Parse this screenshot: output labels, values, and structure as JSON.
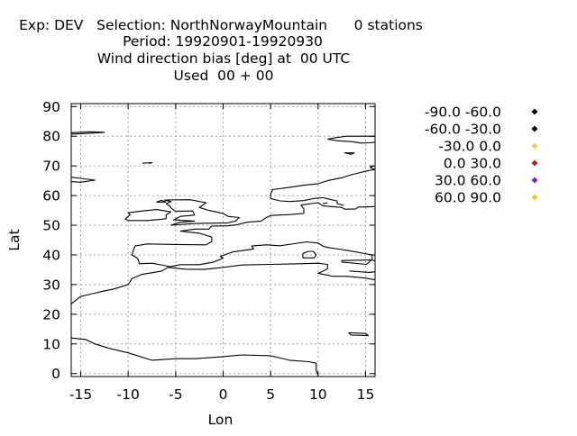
{
  "chart_data": {
    "type": "scatter",
    "title_lines": [
      "Exp: DEV   Selection: NorthNorwayMountain      0 stations",
      "Period: 19920901-19920930",
      "Wind direction bias [deg] at  00 UTC",
      "Used  00 + 00"
    ],
    "xlabel": "Lon",
    "ylabel": "Lat",
    "xlim": [
      -16,
      16
    ],
    "ylim": [
      -1,
      91
    ],
    "xticks": [
      -15,
      -10,
      -5,
      0,
      5,
      10,
      15
    ],
    "yticks": [
      0,
      10,
      20,
      30,
      40,
      50,
      60,
      70,
      80,
      90
    ],
    "grid": true,
    "legend_position": "right",
    "legend": [
      {
        "label": "-90.0 -60.0",
        "color": "#000000"
      },
      {
        "label": "-60.0 -30.0",
        "color": "#000000"
      },
      {
        "label": "-30.0 0.0",
        "color": "#f0d050"
      },
      {
        "label": "0.0 30.0",
        "color": "#c02020"
      },
      {
        "label": "30.0 60.0",
        "color": "#8020c0"
      },
      {
        "label": "60.0 90.0",
        "color": "#e8d020"
      }
    ],
    "series": [],
    "coastlines": [
      [
        [
          -16,
          81.2
        ],
        [
          -14,
          81.5
        ],
        [
          -12.5,
          81.3
        ],
        [
          -14,
          81.0
        ],
        [
          -16,
          80.7
        ]
      ],
      [
        [
          -16,
          66.2
        ],
        [
          -15,
          65.8
        ],
        [
          -13.5,
          65.2
        ],
        [
          -15,
          64.5
        ],
        [
          -16,
          64.7
        ]
      ],
      [
        [
          -8.5,
          70.9
        ],
        [
          -7.5,
          71.1
        ],
        [
          -7.8,
          70.8
        ]
      ],
      [
        [
          -16,
          23.5
        ],
        [
          -15,
          26
        ],
        [
          -13,
          27.5
        ],
        [
          -11.5,
          28.5
        ],
        [
          -10,
          30
        ],
        [
          -9.6,
          32
        ],
        [
          -8.5,
          33.5
        ],
        [
          -6.5,
          34.5
        ],
        [
          -5.8,
          35.8
        ],
        [
          -4,
          35.2
        ],
        [
          -2,
          35.1
        ],
        [
          0,
          35.8
        ],
        [
          2,
          36.6
        ],
        [
          5,
          36.8
        ],
        [
          8,
          37
        ],
        [
          10,
          37.2
        ],
        [
          11,
          36.8
        ],
        [
          11,
          35.4
        ],
        [
          10.5,
          34.5
        ],
        [
          10,
          33.8
        ],
        [
          11,
          33.2
        ],
        [
          11.5,
          32.8
        ],
        [
          13,
          32.8
        ],
        [
          15,
          32.2
        ],
        [
          16,
          31.6
        ]
      ],
      [
        [
          -16,
          12
        ],
        [
          -14.5,
          11.5
        ],
        [
          -13.5,
          10
        ],
        [
          -12,
          8.5
        ],
        [
          -10,
          7
        ],
        [
          -7.5,
          4.5
        ],
        [
          -5,
          5
        ],
        [
          -3,
          5
        ],
        [
          0,
          5.7
        ],
        [
          2,
          6.3
        ],
        [
          5,
          6
        ],
        [
          7,
          4.5
        ],
        [
          9,
          4
        ],
        [
          9.8,
          3.5
        ],
        [
          9.8,
          1
        ],
        [
          10,
          -0.5
        ]
      ],
      [
        [
          -9.3,
          43
        ],
        [
          -8,
          43.7
        ],
        [
          -5,
          43.5
        ],
        [
          -1.8,
          43.4
        ],
        [
          -1.2,
          44.5
        ],
        [
          -1.2,
          46
        ],
        [
          -2.5,
          47.3
        ],
        [
          -4.5,
          48
        ],
        [
          -3,
          48.7
        ],
        [
          -1.5,
          48.7
        ],
        [
          -1.2,
          49.7
        ],
        [
          0.5,
          49.8
        ],
        [
          1.5,
          50.2
        ],
        [
          2.5,
          51
        ],
        [
          4,
          51.4
        ],
        [
          4.5,
          52.5
        ],
        [
          5,
          53.3
        ],
        [
          7,
          53.6
        ],
        [
          8.5,
          54
        ],
        [
          8.5,
          55.5
        ],
        [
          8.2,
          56.8
        ],
        [
          10,
          57.6
        ],
        [
          10.5,
          56.5
        ],
        [
          12.5,
          56
        ],
        [
          12.8,
          55.4
        ],
        [
          14,
          55.5
        ],
        [
          14.2,
          56.1
        ],
        [
          16,
          56.3
        ]
      ],
      [
        [
          -9.3,
          43
        ],
        [
          -9.6,
          40
        ],
        [
          -9,
          38.8
        ],
        [
          -8.8,
          37
        ],
        [
          -7.5,
          37.2
        ],
        [
          -6.3,
          36.5
        ],
        [
          -5.6,
          36
        ],
        [
          -4.5,
          36.7
        ],
        [
          -2.5,
          36.7
        ],
        [
          -1,
          37.6
        ],
        [
          0,
          38.9
        ],
        [
          -0.3,
          39.5
        ],
        [
          1,
          41
        ],
        [
          3.2,
          42
        ],
        [
          3,
          43
        ],
        [
          4.5,
          43.4
        ],
        [
          6,
          43.1
        ],
        [
          7.5,
          43.8
        ],
        [
          8.8,
          44.4
        ],
        [
          10,
          44
        ],
        [
          10.5,
          43
        ],
        [
          11,
          42.5
        ],
        [
          12.5,
          41.8
        ],
        [
          14,
          41
        ],
        [
          15.7,
          40
        ],
        [
          15.7,
          38.2
        ],
        [
          16,
          38
        ]
      ],
      [
        [
          9.5,
          41.2
        ],
        [
          9.8,
          40
        ],
        [
          9.6,
          39
        ],
        [
          8.4,
          39
        ],
        [
          8.4,
          40.5
        ],
        [
          9,
          41.2
        ],
        [
          9.5,
          41.2
        ]
      ],
      [
        [
          12.5,
          38.1
        ],
        [
          15.6,
          38.3
        ],
        [
          15.1,
          36.8
        ],
        [
          12.5,
          37.6
        ],
        [
          12.5,
          38.1
        ]
      ],
      [
        [
          -6.2,
          58.5
        ],
        [
          -3.5,
          58.6
        ],
        [
          -1.8,
          57.6
        ],
        [
          -2.5,
          56
        ],
        [
          -1.5,
          55
        ],
        [
          0,
          54
        ],
        [
          0.5,
          53
        ],
        [
          1.7,
          52.6
        ],
        [
          1.3,
          51.4
        ],
        [
          0.5,
          50.8
        ],
        [
          -1,
          50.7
        ],
        [
          -3,
          50.6
        ],
        [
          -5.5,
          50
        ],
        [
          -4.5,
          51
        ],
        [
          -3,
          51.4
        ],
        [
          -4.5,
          51.7
        ],
        [
          -5.2,
          51.8
        ],
        [
          -4.5,
          53
        ],
        [
          -3,
          53.4
        ],
        [
          -3.2,
          54.8
        ],
        [
          -5,
          54.7
        ],
        [
          -5.5,
          55.8
        ],
        [
          -5.6,
          56.5
        ],
        [
          -6,
          57.2
        ],
        [
          -5.5,
          58
        ],
        [
          -6.2,
          58.5
        ]
      ],
      [
        [
          -10,
          51.6
        ],
        [
          -10.3,
          52.1
        ],
        [
          -9.8,
          53.5
        ],
        [
          -10,
          54.2
        ],
        [
          -8.5,
          54.8
        ],
        [
          -7,
          55.3
        ],
        [
          -5.5,
          54.5
        ],
        [
          -6,
          53.5
        ],
        [
          -6,
          52.2
        ],
        [
          -6.5,
          52
        ],
        [
          -8,
          51.6
        ],
        [
          -10,
          51.6
        ]
      ],
      [
        [
          -6,
          57.8
        ],
        [
          -6.5,
          58.4
        ],
        [
          -7,
          57.8
        ],
        [
          -6,
          57.8
        ]
      ],
      [
        [
          5,
          59
        ],
        [
          5,
          60.5
        ],
        [
          5.2,
          62
        ],
        [
          7,
          62.8
        ],
        [
          8.5,
          63.5
        ],
        [
          10,
          64
        ],
        [
          11,
          65
        ],
        [
          12.5,
          66
        ],
        [
          13.5,
          67
        ],
        [
          15,
          68.2
        ],
        [
          16,
          68.8
        ]
      ],
      [
        [
          5,
          59
        ],
        [
          6,
          58.2
        ],
        [
          7,
          58
        ],
        [
          8.5,
          58.3
        ],
        [
          9.5,
          59
        ],
        [
          10.5,
          59.3
        ],
        [
          11,
          58.9
        ],
        [
          12,
          58.2
        ],
        [
          12,
          57.3
        ],
        [
          12.7,
          56.7
        ]
      ],
      [
        [
          10.5,
          57.2
        ],
        [
          11,
          57.6
        ]
      ],
      [
        [
          16,
          68.8
        ],
        [
          15.5,
          69.4
        ],
        [
          15.8,
          70
        ]
      ],
      [
        [
          11,
          79
        ],
        [
          12,
          78.5
        ],
        [
          13.5,
          78.2
        ],
        [
          14.5,
          77.7
        ],
        [
          15.5,
          77.8
        ],
        [
          16,
          78
        ]
      ],
      [
        [
          11,
          79
        ],
        [
          11.8,
          79.5
        ],
        [
          13,
          80
        ],
        [
          16,
          80
        ]
      ],
      [
        [
          13.5,
          73.9
        ],
        [
          13.8,
          74.4
        ],
        [
          12.8,
          74.4
        ],
        [
          13.5,
          73.9
        ]
      ],
      [
        [
          13.3,
          34.6
        ],
        [
          15.4,
          34.1
        ],
        [
          16,
          34.3
        ]
      ],
      [
        [
          13.2,
          13.8
        ],
        [
          15,
          13.5
        ],
        [
          15.3,
          12.8
        ],
        [
          13.5,
          13
        ],
        [
          13.2,
          13.8
        ]
      ]
    ]
  }
}
